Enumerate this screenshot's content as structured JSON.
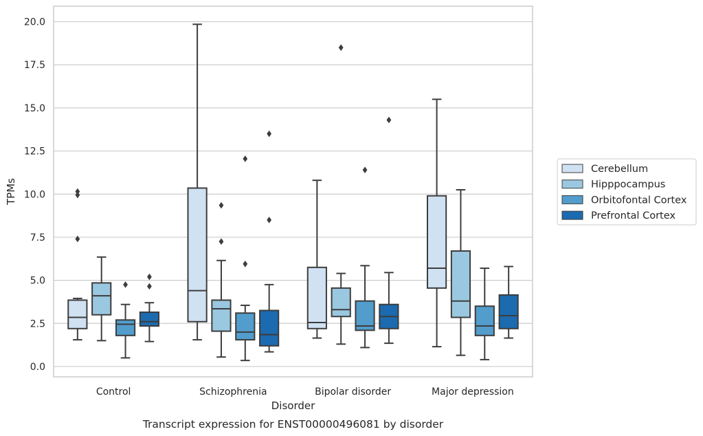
{
  "caption": "Transcript expression for ENST00000496081 by disorder",
  "chart_data": {
    "type": "boxplot",
    "xlabel": "Disorder",
    "ylabel": "TPMs",
    "ylim": [
      -0.6,
      20.9
    ],
    "yticks": [
      "0.0",
      "2.5",
      "5.0",
      "7.5",
      "10.0",
      "12.5",
      "15.0",
      "17.5",
      "20.0"
    ],
    "ytick_values": [
      0,
      2.5,
      5,
      7.5,
      10,
      12.5,
      15,
      17.5,
      20
    ],
    "grid": "horizontal",
    "legend_placement": "center-right outside",
    "categories": [
      "Control",
      "Schizophrenia",
      "Bipolar disorder",
      "Major depression"
    ],
    "series": [
      {
        "name": "Cerebellum",
        "color": "#d0e1f2",
        "boxes": [
          {
            "whislo": 1.55,
            "q1": 2.2,
            "med": 2.85,
            "q3": 3.85,
            "whishi": 3.95,
            "fliers": [
              7.4,
              9.95,
              10.15
            ]
          },
          {
            "whislo": 1.55,
            "q1": 2.6,
            "med": 4.4,
            "q3": 10.35,
            "whishi": 19.85,
            "fliers": []
          },
          {
            "whislo": 1.65,
            "q1": 2.2,
            "med": 2.55,
            "q3": 5.75,
            "whishi": 10.8,
            "fliers": []
          },
          {
            "whislo": 1.15,
            "q1": 4.55,
            "med": 5.7,
            "q3": 9.9,
            "whishi": 15.5,
            "fliers": []
          }
        ]
      },
      {
        "name": "Hipppocampus",
        "color": "#9ac8e0",
        "boxes": [
          {
            "whislo": 1.5,
            "q1": 3.0,
            "med": 4.1,
            "q3": 4.85,
            "whishi": 6.35,
            "fliers": []
          },
          {
            "whislo": 0.55,
            "q1": 2.05,
            "med": 3.35,
            "q3": 3.85,
            "whishi": 6.15,
            "fliers": [
              7.25,
              9.35
            ]
          },
          {
            "whislo": 1.3,
            "q1": 2.9,
            "med": 3.3,
            "q3": 4.55,
            "whishi": 5.4,
            "fliers": [
              18.5
            ]
          },
          {
            "whislo": 0.65,
            "q1": 2.85,
            "med": 3.8,
            "q3": 6.7,
            "whishi": 10.25,
            "fliers": []
          }
        ]
      },
      {
        "name": "Orbitofontal Cortex",
        "color": "#529dcc",
        "boxes": [
          {
            "whislo": 0.5,
            "q1": 1.8,
            "med": 2.45,
            "q3": 2.7,
            "whishi": 3.6,
            "fliers": [
              4.75
            ]
          },
          {
            "whislo": 0.35,
            "q1": 1.55,
            "med": 2.0,
            "q3": 3.1,
            "whishi": 3.55,
            "fliers": [
              5.95,
              12.05
            ]
          },
          {
            "whislo": 1.1,
            "q1": 2.1,
            "med": 2.35,
            "q3": 3.8,
            "whishi": 5.85,
            "fliers": [
              11.4
            ]
          },
          {
            "whislo": 0.4,
            "q1": 1.8,
            "med": 2.35,
            "q3": 3.5,
            "whishi": 5.7,
            "fliers": []
          }
        ]
      },
      {
        "name": "Prefrontal Cortex",
        "color": "#1c6aaf",
        "boxes": [
          {
            "whislo": 1.45,
            "q1": 2.35,
            "med": 2.6,
            "q3": 3.15,
            "whishi": 3.7,
            "fliers": [
              4.65,
              5.2
            ]
          },
          {
            "whislo": 0.85,
            "q1": 1.2,
            "med": 1.85,
            "q3": 3.25,
            "whishi": 4.75,
            "fliers": [
              8.5,
              13.5
            ]
          },
          {
            "whislo": 1.35,
            "q1": 2.2,
            "med": 2.9,
            "q3": 3.6,
            "whishi": 5.45,
            "fliers": [
              14.3
            ]
          },
          {
            "whislo": 1.65,
            "q1": 2.2,
            "med": 2.95,
            "q3": 4.15,
            "whishi": 5.8,
            "fliers": []
          }
        ]
      }
    ]
  }
}
